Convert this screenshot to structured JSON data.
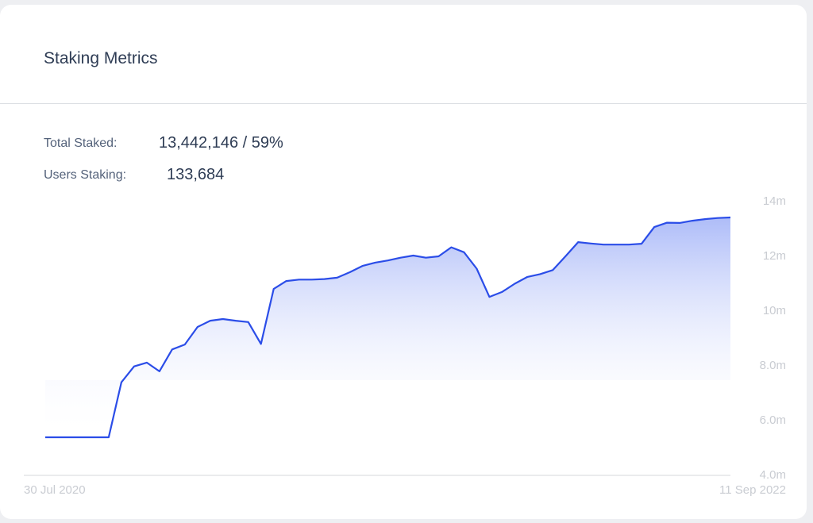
{
  "header": {
    "title": "Staking Metrics"
  },
  "stats": [
    {
      "label": "Total Staked:",
      "value": "13,442,146 / 59%"
    },
    {
      "label": "Users Staking:",
      "value": "133,684"
    }
  ],
  "chart_data": {
    "type": "line",
    "categories": [
      "30 Jul 2020",
      null,
      null,
      null,
      null,
      null,
      null,
      null,
      null,
      null,
      null,
      null,
      null,
      null,
      null,
      null,
      null,
      null,
      null,
      null,
      null,
      null,
      null,
      null,
      null,
      null,
      null,
      null,
      null,
      null,
      null,
      null,
      null,
      null,
      null,
      null,
      null,
      null,
      null,
      null,
      null,
      null,
      null,
      null,
      null,
      null,
      null,
      null,
      null,
      null,
      null,
      null,
      null,
      null,
      "11 Sep 2022"
    ],
    "values": [
      5.39,
      5.39,
      5.39,
      5.39,
      5.39,
      5.39,
      7.4,
      7.98,
      8.12,
      7.8,
      8.6,
      8.78,
      9.42,
      9.65,
      9.71,
      9.65,
      9.6,
      8.8,
      10.81,
      11.1,
      11.15,
      11.15,
      11.17,
      11.22,
      11.42,
      11.65,
      11.77,
      11.85,
      11.95,
      12.03,
      11.95,
      12.0,
      12.33,
      12.15,
      11.55,
      10.52,
      10.7,
      11.0,
      11.25,
      11.35,
      11.5,
      12.0,
      12.52,
      12.47,
      12.43,
      12.43,
      12.43,
      12.46,
      13.07,
      13.23,
      13.22,
      13.3,
      13.36,
      13.4,
      13.42
    ],
    "color": "#2b4de8",
    "ylim": [
      4,
      14
    ],
    "yticks": [
      {
        "value": 4,
        "label": "4.0m"
      },
      {
        "value": 6,
        "label": "6.0m"
      },
      {
        "value": 8,
        "label": "8.0m"
      },
      {
        "value": 10,
        "label": "10m"
      },
      {
        "value": 12,
        "label": "12m"
      },
      {
        "value": 14,
        "label": "14m"
      }
    ],
    "grid": false
  }
}
